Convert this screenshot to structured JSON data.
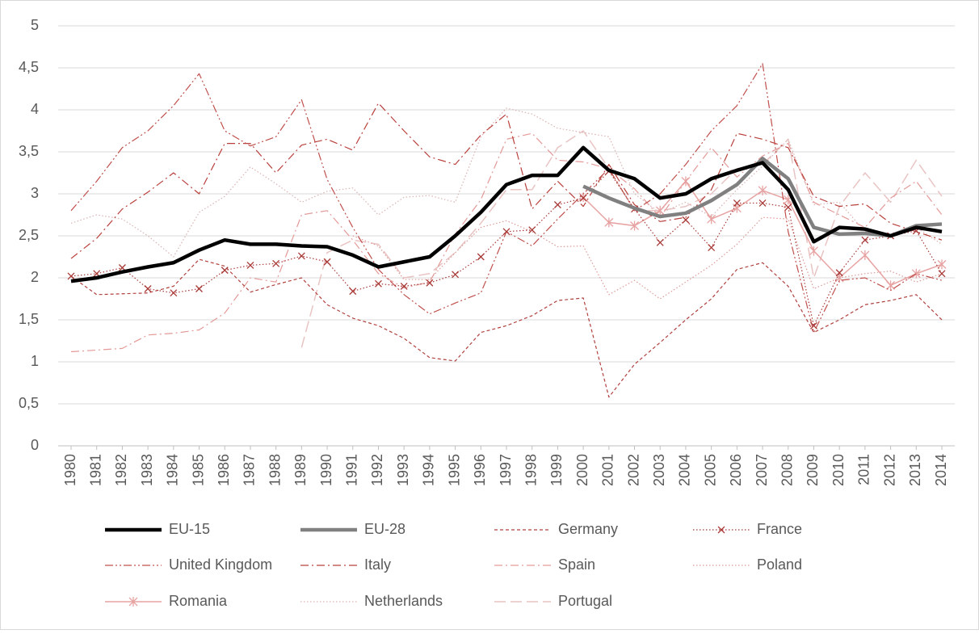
{
  "chart_data": {
    "type": "line",
    "categories": [
      "1980",
      "1981",
      "1982",
      "1983",
      "1984",
      "1985",
      "1986",
      "1987",
      "1988",
      "1989",
      "1990",
      "1991",
      "1992",
      "1993",
      "1994",
      "1995",
      "1996",
      "1997",
      "1998",
      "1999",
      "2000",
      "2001",
      "2002",
      "2003",
      "2004",
      "2005",
      "2006",
      "2007",
      "2008",
      "2009",
      "2010",
      "2011",
      "2012",
      "2013",
      "2014"
    ],
    "ylim": [
      0,
      5
    ],
    "yticks": [
      0,
      {
        "value": 0.5,
        "label": "0,5"
      },
      1,
      {
        "value": 1.5,
        "label": "1,5"
      },
      2,
      {
        "value": 2.5,
        "label": "2,5"
      },
      3,
      {
        "value": 3.5,
        "label": "3,5"
      },
      4,
      {
        "value": 4.5,
        "label": "4,5"
      },
      5
    ],
    "grid": true,
    "legend": "bottom",
    "series": [
      {
        "name": "EU-15",
        "color": "#000000",
        "width": 4.5,
        "dash": "solid",
        "values": [
          1.96,
          2.0,
          2.07,
          2.13,
          2.18,
          2.33,
          2.45,
          2.4,
          2.4,
          2.38,
          2.37,
          2.27,
          2.13,
          2.19,
          2.25,
          2.5,
          2.78,
          3.11,
          3.22,
          3.22,
          3.55,
          3.28,
          3.18,
          2.95,
          3.0,
          3.18,
          3.28,
          3.37,
          3.05,
          2.43,
          2.6,
          2.58,
          2.5,
          2.6,
          2.55
        ]
      },
      {
        "name": "EU-28",
        "color": "#808080",
        "width": 4.5,
        "dash": "solid",
        "values": [
          null,
          null,
          null,
          null,
          null,
          null,
          null,
          null,
          null,
          null,
          null,
          null,
          null,
          null,
          null,
          null,
          null,
          null,
          null,
          null,
          3.09,
          2.95,
          2.83,
          2.73,
          2.77,
          2.92,
          3.11,
          3.42,
          3.18,
          2.6,
          2.52,
          2.53,
          2.5,
          2.62,
          2.64
        ]
      },
      {
        "name": "Germany",
        "color": "#b0413e",
        "width": 1.2,
        "dash": "dashed",
        "values": [
          2.02,
          1.8,
          1.81,
          1.82,
          1.9,
          2.22,
          2.14,
          1.83,
          1.92,
          2.0,
          1.68,
          1.52,
          1.43,
          1.28,
          1.05,
          1.01,
          1.35,
          1.43,
          1.55,
          1.73,
          1.76,
          0.58,
          0.97,
          1.23,
          1.5,
          1.75,
          2.1,
          2.18,
          1.9,
          1.35,
          1.5,
          1.68,
          1.73,
          1.8,
          1.5
        ]
      },
      {
        "name": "France",
        "color": "#a83a37",
        "width": 1.2,
        "dash": "dotted",
        "marker": "x",
        "values": [
          2.02,
          2.05,
          2.12,
          1.87,
          1.82,
          1.87,
          2.09,
          2.15,
          2.17,
          2.26,
          2.19,
          1.84,
          1.93,
          1.9,
          1.94,
          2.04,
          2.25,
          2.55,
          2.57,
          2.87,
          2.95,
          3.27,
          2.82,
          2.42,
          2.69,
          2.36,
          2.89,
          2.89,
          2.84,
          1.43,
          2.06,
          2.45,
          2.5,
          2.56,
          2.05
        ]
      },
      {
        "name": "United Kingdom",
        "color": "#c0504d",
        "width": 1.2,
        "dash": "dashdotdot",
        "values": [
          2.8,
          3.15,
          3.55,
          3.75,
          4.05,
          4.43,
          3.75,
          3.57,
          3.68,
          4.12,
          3.17,
          2.6,
          2.1,
          1.8,
          1.57,
          1.7,
          1.82,
          2.55,
          2.38,
          2.7,
          3.0,
          3.3,
          2.8,
          3.0,
          3.35,
          3.75,
          4.05,
          4.55,
          2.55,
          1.35,
          1.97,
          2.0,
          1.85,
          2.05,
          1.97
        ]
      },
      {
        "name": "Italy",
        "color": "#b8403c",
        "width": 1.2,
        "dash": "dashdot",
        "values": [
          2.23,
          2.47,
          2.82,
          3.02,
          3.25,
          3.0,
          3.6,
          3.6,
          3.25,
          3.58,
          3.65,
          3.52,
          4.08,
          3.75,
          3.44,
          3.35,
          3.7,
          3.95,
          2.82,
          3.15,
          2.85,
          3.35,
          2.87,
          2.67,
          2.72,
          3.05,
          3.72,
          3.65,
          3.55,
          2.97,
          2.85,
          2.88,
          2.65,
          2.55,
          2.45
        ]
      },
      {
        "name": "Spain",
        "color": "#e39a98",
        "width": 1.2,
        "dash": "dashdot",
        "values": [
          1.12,
          1.14,
          1.16,
          1.32,
          1.34,
          1.38,
          1.58,
          2.0,
          1.95,
          2.75,
          2.8,
          2.45,
          2.05,
          1.88,
          1.95,
          2.52,
          2.93,
          3.65,
          3.72,
          3.4,
          3.38,
          3.3,
          3.06,
          2.72,
          3.15,
          3.55,
          3.2,
          3.45,
          3.6,
          2.9,
          2.75,
          2.6,
          2.95,
          3.15,
          2.75
        ]
      },
      {
        "name": "Poland",
        "color": "#dc9a98",
        "width": 1.2,
        "dash": "dotted",
        "values": [
          null,
          null,
          null,
          null,
          null,
          null,
          null,
          null,
          null,
          null,
          null,
          2.5,
          2.38,
          1.98,
          1.98,
          2.3,
          2.6,
          2.68,
          2.55,
          2.37,
          2.38,
          1.8,
          1.97,
          1.75,
          1.95,
          2.15,
          2.4,
          2.72,
          2.7,
          1.87,
          2.0,
          2.05,
          2.08,
          1.95,
          2.05
        ]
      },
      {
        "name": "Romania",
        "color": "#e6a3a2",
        "width": 1.5,
        "dash": "solid",
        "marker": "asterisk",
        "values": [
          null,
          null,
          null,
          null,
          null,
          null,
          null,
          null,
          null,
          null,
          null,
          null,
          null,
          null,
          null,
          null,
          null,
          null,
          null,
          null,
          2.96,
          2.66,
          2.62,
          2.8,
          3.15,
          2.7,
          2.83,
          3.04,
          2.93,
          2.32,
          2.0,
          2.27,
          1.91,
          2.05,
          2.16
        ]
      },
      {
        "name": "Netherlands",
        "color": "#d9b3b2",
        "width": 1.2,
        "dash": "dotted",
        "values": [
          2.65,
          2.75,
          2.7,
          2.5,
          2.25,
          2.78,
          2.97,
          3.32,
          3.12,
          2.9,
          3.03,
          3.07,
          2.75,
          2.96,
          2.98,
          2.9,
          3.68,
          4.02,
          3.95,
          3.78,
          3.73,
          3.68,
          3.0,
          2.77,
          2.9,
          2.73,
          3.05,
          3.33,
          3.65,
          2.87,
          2.9,
          2.55,
          2.5,
          2.6,
          2.4
        ]
      },
      {
        "name": "Portugal",
        "color": "#e8c4c3",
        "width": 1.5,
        "dash": "longdash",
        "values": [
          null,
          null,
          null,
          null,
          null,
          null,
          null,
          null,
          null,
          1.17,
          2.3,
          2.45,
          2.4,
          2.0,
          2.05,
          2.3,
          2.65,
          3.05,
          3.05,
          3.55,
          3.75,
          3.3,
          2.8,
          2.8,
          2.85,
          3.0,
          3.3,
          3.35,
          3.65,
          2.0,
          2.85,
          3.25,
          2.9,
          3.4,
          2.97
        ]
      }
    ]
  }
}
